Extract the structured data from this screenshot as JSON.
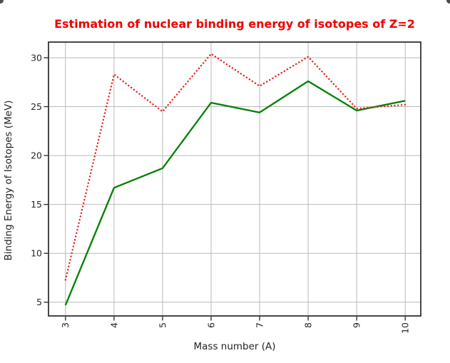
{
  "figure": {
    "background": "#ffffff"
  },
  "chart_data": {
    "type": "line",
    "title": "Estimation of nuclear binding energy of isotopes of Z=2",
    "title_color": "#f10000",
    "xlabel": "Mass number (A)",
    "ylabel": "Binding Energy of Isotopes (MeV)",
    "x": [
      3,
      4,
      5,
      6,
      7,
      8,
      9,
      10
    ],
    "xtick_labels": [
      "3",
      "4",
      "5",
      "6",
      "7",
      "8",
      "9",
      "10"
    ],
    "xtick_rotation": 90,
    "yticks": [
      5,
      10,
      15,
      20,
      25,
      30
    ],
    "xlim": [
      2.65,
      10.32
    ],
    "ylim": [
      3.6,
      31.6
    ],
    "grid": true,
    "grid_color": "#b9b9b9",
    "spine_color": "#333333",
    "tick_label_color": "#262626",
    "legend": "none",
    "series": [
      {
        "name": "green-solid-series",
        "style": "solid",
        "color": "#008000",
        "values": [
          4.7,
          16.7,
          18.7,
          25.4,
          24.4,
          27.6,
          24.6,
          25.6
        ]
      },
      {
        "name": "red-dotted-series",
        "style": "dotted",
        "color": "#ee2222",
        "values": [
          7.3,
          28.3,
          24.5,
          30.4,
          27.1,
          30.1,
          24.8,
          25.2
        ]
      }
    ]
  }
}
